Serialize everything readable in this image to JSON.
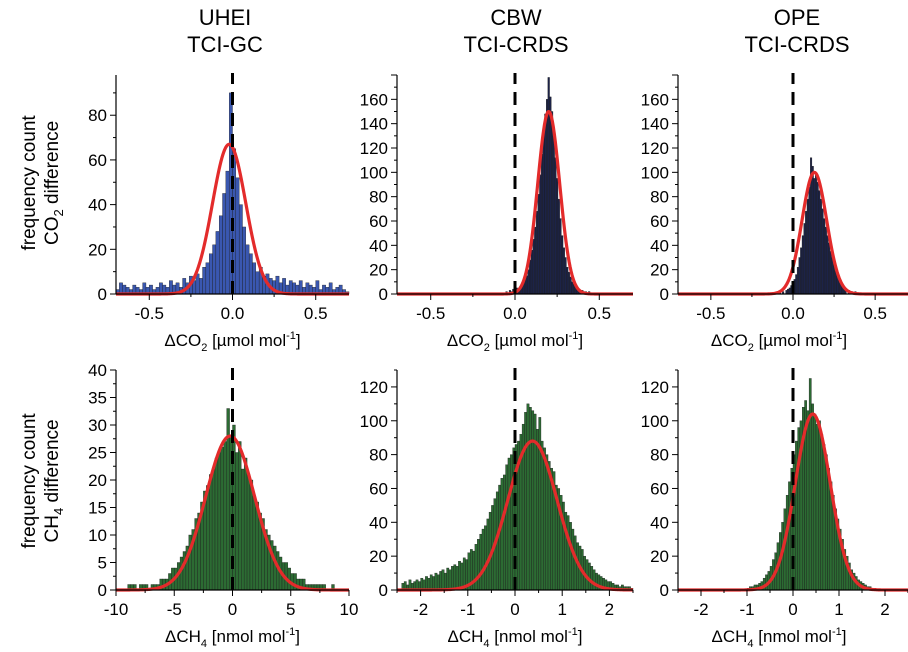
{
  "columns": [
    {
      "line1": "UHEI",
      "line2": "TCI-GC"
    },
    {
      "line1": "CBW",
      "line2": "TCI-CRDS"
    },
    {
      "line1": "OPE",
      "line2": "TCI-CRDS"
    }
  ],
  "row_labels": {
    "co2": {
      "line1": "frequency count",
      "line2_pre": "CO",
      "line2_sub": "2",
      "line2_post": " difference"
    },
    "ch4": {
      "line1": "frequency count",
      "line2_pre": "CH",
      "line2_sub": "4",
      "line2_post": " difference"
    }
  },
  "colors": {
    "co2_uhei": "#3a57b0",
    "co2_crds": "#1c2348",
    "ch4": "#2c6b33",
    "fit": "#e32b2b",
    "zero_line": "#000000"
  },
  "chart_data": [
    {
      "type": "bar",
      "panel": "co2-uhei",
      "xlabel": {
        "pre": "ΔCO",
        "sub": "2",
        "mid": " [µmol mol",
        "sup": "-1",
        "post": "]"
      },
      "xlim": [
        -0.7,
        0.7
      ],
      "xticks": [
        -0.5,
        0.0,
        0.5
      ],
      "xtick_labels": [
        "-0.5",
        "0.0",
        "0.5"
      ],
      "ylim": [
        0,
        98
      ],
      "yticks": [
        0,
        20,
        40,
        60,
        80
      ],
      "ytick_labels": [
        "0",
        "20",
        "40",
        "60",
        "80"
      ],
      "bin_width": 0.02,
      "bins_x": [
        -0.69,
        -0.67,
        -0.65,
        -0.63,
        -0.61,
        -0.59,
        -0.57,
        -0.55,
        -0.53,
        -0.51,
        -0.49,
        -0.47,
        -0.45,
        -0.43,
        -0.41,
        -0.39,
        -0.37,
        -0.35,
        -0.33,
        -0.31,
        -0.29,
        -0.27,
        -0.25,
        -0.23,
        -0.21,
        -0.19,
        -0.17,
        -0.15,
        -0.13,
        -0.11,
        -0.09,
        -0.07,
        -0.05,
        -0.03,
        -0.01,
        0.01,
        0.03,
        0.05,
        0.07,
        0.09,
        0.11,
        0.13,
        0.15,
        0.17,
        0.19,
        0.21,
        0.23,
        0.25,
        0.27,
        0.29,
        0.31,
        0.33,
        0.35,
        0.37,
        0.39,
        0.41,
        0.43,
        0.45,
        0.47,
        0.49,
        0.51,
        0.53,
        0.55,
        0.57,
        0.59,
        0.61,
        0.63,
        0.65,
        0.67,
        0.69
      ],
      "counts": [
        2,
        5,
        4,
        3,
        2,
        4,
        3,
        2,
        5,
        3,
        4,
        2,
        3,
        5,
        4,
        3,
        6,
        4,
        5,
        3,
        7,
        5,
        8,
        6,
        9,
        7,
        12,
        14,
        18,
        22,
        28,
        35,
        45,
        55,
        90,
        65,
        52,
        40,
        30,
        22,
        18,
        14,
        10,
        12,
        8,
        9,
        7,
        6,
        8,
        5,
        7,
        4,
        6,
        5,
        4,
        6,
        3,
        5,
        4,
        3,
        6,
        2,
        4,
        3,
        5,
        2,
        3,
        4,
        2,
        1
      ],
      "fit": {
        "type": "gaussian",
        "amplitude": 67,
        "center": -0.02,
        "sigma": 0.1
      },
      "zero_line": 0.0
    },
    {
      "type": "bar",
      "panel": "co2-cbw",
      "xlabel": {
        "pre": "ΔCO",
        "sub": "2",
        "mid": " [µmol mol",
        "sup": "-1",
        "post": "]"
      },
      "xlim": [
        -0.7,
        0.7
      ],
      "xticks": [
        -0.5,
        0.0,
        0.5
      ],
      "xtick_labels": [
        "-0.5",
        "0.0",
        "0.5"
      ],
      "ylim": [
        0,
        180
      ],
      "yticks": [
        0,
        20,
        40,
        60,
        80,
        100,
        120,
        140,
        160
      ],
      "ytick_labels": [
        "0",
        "20",
        "40",
        "60",
        "80",
        "100",
        "120",
        "140",
        "160"
      ],
      "bin_width": 0.01,
      "bins_x": [
        -0.05,
        -0.04,
        -0.03,
        -0.02,
        -0.01,
        0.0,
        0.01,
        0.02,
        0.03,
        0.04,
        0.05,
        0.06,
        0.07,
        0.08,
        0.09,
        0.1,
        0.11,
        0.12,
        0.13,
        0.14,
        0.15,
        0.16,
        0.17,
        0.18,
        0.19,
        0.2,
        0.21,
        0.22,
        0.23,
        0.24,
        0.25,
        0.26,
        0.27,
        0.28,
        0.29,
        0.3,
        0.31,
        0.32,
        0.33,
        0.34,
        0.35,
        0.36,
        0.37,
        0.38,
        0.39,
        0.4,
        0.41,
        0.42,
        0.43,
        0.44,
        0.45,
        0.47,
        0.5,
        0.53,
        0.56
      ],
      "counts": [
        2,
        1,
        3,
        2,
        4,
        3,
        5,
        4,
        6,
        8,
        10,
        12,
        15,
        20,
        28,
        36,
        45,
        55,
        68,
        82,
        98,
        115,
        132,
        148,
        160,
        178,
        162,
        150,
        130,
        112,
        95,
        78,
        62,
        48,
        38,
        30,
        22,
        18,
        14,
        10,
        8,
        6,
        5,
        4,
        3,
        3,
        2,
        2,
        1,
        2,
        1,
        1,
        1,
        1,
        1
      ],
      "fit": {
        "type": "gaussian",
        "amplitude": 150,
        "center": 0.2,
        "sigma": 0.065
      },
      "zero_line": 0.0
    },
    {
      "type": "bar",
      "panel": "co2-ope",
      "xlabel": {
        "pre": "ΔCO",
        "sub": "2",
        "mid": " [µmol mol",
        "sup": "-1",
        "post": "]"
      },
      "xlim": [
        -0.7,
        0.7
      ],
      "xticks": [
        -0.5,
        0.0,
        0.5
      ],
      "xtick_labels": [
        "-0.5",
        "0.0",
        "0.5"
      ],
      "ylim": [
        0,
        180
      ],
      "yticks": [
        0,
        20,
        40,
        60,
        80,
        100,
        120,
        140,
        160
      ],
      "ytick_labels": [
        "0",
        "20",
        "40",
        "60",
        "80",
        "100",
        "120",
        "140",
        "160"
      ],
      "bin_width": 0.01,
      "bins_x": [
        -0.1,
        -0.08,
        -0.06,
        -0.04,
        -0.03,
        -0.02,
        -0.01,
        0.0,
        0.01,
        0.02,
        0.03,
        0.04,
        0.05,
        0.06,
        0.07,
        0.08,
        0.09,
        0.1,
        0.11,
        0.12,
        0.13,
        0.14,
        0.15,
        0.16,
        0.17,
        0.18,
        0.19,
        0.2,
        0.21,
        0.22,
        0.23,
        0.24,
        0.25,
        0.26,
        0.27,
        0.28,
        0.29,
        0.3,
        0.31,
        0.32,
        0.34,
        0.36,
        0.38,
        0.4
      ],
      "counts": [
        1,
        2,
        2,
        3,
        4,
        5,
        7,
        9,
        12,
        16,
        22,
        30,
        38,
        48,
        58,
        68,
        78,
        88,
        112,
        105,
        95,
        98,
        92,
        85,
        78,
        70,
        62,
        55,
        48,
        42,
        35,
        30,
        24,
        19,
        15,
        12,
        9,
        7,
        5,
        4,
        3,
        2,
        2,
        1
      ],
      "fit": {
        "type": "gaussian",
        "amplitude": 100,
        "center": 0.13,
        "sigma": 0.075
      },
      "zero_line": 0.0
    },
    {
      "type": "bar",
      "panel": "ch4-uhei",
      "xlabel": {
        "pre": "ΔCH",
        "sub": "4",
        "mid": " [nmol mol",
        "sup": "-1",
        "post": "]"
      },
      "xlim": [
        -10,
        10
      ],
      "xticks": [
        -10,
        -5,
        0,
        5,
        10
      ],
      "xtick_labels": [
        "-10",
        "-5",
        "0",
        "5",
        "10"
      ],
      "ylim": [
        0,
        40
      ],
      "yticks": [
        0,
        5,
        10,
        15,
        20,
        25,
        30,
        35,
        40
      ],
      "ytick_labels": [
        "0",
        "5",
        "10",
        "15",
        "20",
        "25",
        "30",
        "35",
        "40"
      ],
      "bin_width": 0.25,
      "bins_x": [
        -8.875,
        -8.625,
        -8.375,
        -8.125,
        -7.875,
        -7.625,
        -7.375,
        -7.125,
        -6.875,
        -6.625,
        -6.375,
        -6.125,
        -5.875,
        -5.625,
        -5.375,
        -5.125,
        -4.875,
        -4.625,
        -4.375,
        -4.125,
        -3.875,
        -3.625,
        -3.375,
        -3.125,
        -2.875,
        -2.625,
        -2.375,
        -2.125,
        -1.875,
        -1.625,
        -1.375,
        -1.125,
        -0.875,
        -0.625,
        -0.375,
        -0.125,
        0.125,
        0.375,
        0.625,
        0.875,
        1.125,
        1.375,
        1.625,
        1.875,
        2.125,
        2.375,
        2.625,
        2.875,
        3.125,
        3.375,
        3.625,
        3.875,
        4.125,
        4.375,
        4.625,
        4.875,
        5.125,
        5.375,
        5.625,
        5.875,
        6.125,
        6.375,
        6.625,
        6.875,
        7.125,
        7.375,
        7.625,
        7.875,
        8.125,
        8.375,
        8.625,
        8.875
      ],
      "counts": [
        1,
        1,
        1,
        0,
        1,
        1,
        1,
        0,
        1,
        1,
        1,
        2,
        2,
        2,
        3,
        4,
        4,
        5,
        6,
        7,
        8,
        10,
        11,
        13,
        14,
        16,
        18,
        19,
        21,
        22,
        24,
        25,
        26,
        27,
        33,
        28,
        30,
        25,
        27,
        22,
        24,
        21,
        20,
        17,
        16,
        14,
        13,
        11,
        10,
        9,
        8,
        7,
        6,
        5,
        5,
        4,
        3,
        3,
        2,
        2,
        2,
        1,
        1,
        1,
        1,
        1,
        1,
        1,
        0,
        0,
        1,
        0
      ],
      "fit": {
        "type": "gaussian",
        "amplitude": 28,
        "center": -0.2,
        "sigma": 2.1
      },
      "zero_line": 0.0
    },
    {
      "type": "bar",
      "panel": "ch4-cbw",
      "xlabel": {
        "pre": "ΔCH",
        "sub": "4",
        "mid": " [nmol mol",
        "sup": "-1",
        "post": "]"
      },
      "xlim": [
        -2.5,
        2.5
      ],
      "xticks": [
        -2,
        -1,
        0,
        1,
        2
      ],
      "xtick_labels": [
        "-2",
        "-1",
        "0",
        "1",
        "2"
      ],
      "ylim": [
        0,
        130
      ],
      "yticks": [
        0,
        20,
        40,
        60,
        80,
        100,
        120
      ],
      "ytick_labels": [
        "0",
        "20",
        "40",
        "60",
        "80",
        "100",
        "120"
      ],
      "bin_width": 0.05,
      "bins_x": [
        -2.375,
        -2.325,
        -2.275,
        -2.225,
        -2.175,
        -2.125,
        -2.075,
        -2.025,
        -1.975,
        -1.925,
        -1.875,
        -1.825,
        -1.775,
        -1.725,
        -1.675,
        -1.625,
        -1.575,
        -1.525,
        -1.475,
        -1.425,
        -1.375,
        -1.325,
        -1.275,
        -1.225,
        -1.175,
        -1.125,
        -1.075,
        -1.025,
        -0.975,
        -0.925,
        -0.875,
        -0.825,
        -0.775,
        -0.725,
        -0.675,
        -0.625,
        -0.575,
        -0.525,
        -0.475,
        -0.425,
        -0.375,
        -0.325,
        -0.275,
        -0.225,
        -0.175,
        -0.125,
        -0.075,
        -0.025,
        0.025,
        0.075,
        0.125,
        0.175,
        0.225,
        0.275,
        0.325,
        0.375,
        0.425,
        0.475,
        0.525,
        0.575,
        0.625,
        0.675,
        0.725,
        0.775,
        0.825,
        0.875,
        0.925,
        0.975,
        1.025,
        1.075,
        1.125,
        1.175,
        1.225,
        1.275,
        1.325,
        1.375,
        1.425,
        1.475,
        1.525,
        1.575,
        1.625,
        1.675,
        1.725,
        1.775,
        1.825,
        1.875,
        1.925,
        1.975,
        2.025,
        2.075,
        2.125,
        2.175,
        2.225,
        2.275,
        2.325,
        2.375,
        2.425,
        2.475
      ],
      "counts": [
        4,
        5,
        3,
        6,
        4,
        5,
        6,
        5,
        7,
        6,
        8,
        7,
        9,
        8,
        10,
        9,
        11,
        12,
        10,
        13,
        12,
        14,
        15,
        14,
        17,
        16,
        19,
        18,
        22,
        24,
        23,
        27,
        30,
        33,
        36,
        38,
        42,
        46,
        50,
        54,
        58,
        62,
        66,
        68,
        74,
        78,
        80,
        84,
        86,
        88,
        92,
        98,
        105,
        110,
        108,
        106,
        104,
        95,
        102,
        88,
        84,
        80,
        76,
        72,
        70,
        62,
        60,
        56,
        52,
        46,
        44,
        40,
        36,
        32,
        28,
        26,
        24,
        20,
        18,
        16,
        14,
        12,
        10,
        9,
        8,
        7,
        6,
        5,
        5,
        4,
        3,
        3,
        2,
        3,
        2,
        2,
        2,
        1
      ],
      "fit": {
        "type": "gaussian",
        "amplitude": 88,
        "center": 0.37,
        "sigma": 0.52
      },
      "zero_line": 0.0
    },
    {
      "type": "bar",
      "panel": "ch4-ope",
      "xlabel": {
        "pre": "ΔCH",
        "sub": "4",
        "mid": " [nmol mol",
        "sup": "-1",
        "post": "]"
      },
      "xlim": [
        -2.5,
        2.5
      ],
      "xticks": [
        -2,
        -1,
        0,
        1,
        2
      ],
      "xtick_labels": [
        "-2",
        "-1",
        "0",
        "1",
        "2"
      ],
      "ylim": [
        0,
        130
      ],
      "yticks": [
        0,
        20,
        40,
        60,
        80,
        100,
        120
      ],
      "ytick_labels": [
        "0",
        "20",
        "40",
        "60",
        "80",
        "100",
        "120"
      ],
      "bin_width": 0.05,
      "bins_x": [
        -0.975,
        -0.925,
        -0.875,
        -0.825,
        -0.775,
        -0.725,
        -0.675,
        -0.625,
        -0.575,
        -0.525,
        -0.475,
        -0.425,
        -0.375,
        -0.325,
        -0.275,
        -0.225,
        -0.175,
        -0.125,
        -0.075,
        -0.025,
        0.025,
        0.075,
        0.125,
        0.175,
        0.225,
        0.275,
        0.325,
        0.375,
        0.425,
        0.475,
        0.525,
        0.575,
        0.625,
        0.675,
        0.725,
        0.775,
        0.825,
        0.875,
        0.925,
        0.975,
        1.025,
        1.075,
        1.125,
        1.175,
        1.225,
        1.275,
        1.325,
        1.375,
        1.425,
        1.475,
        1.525,
        1.575,
        1.625,
        1.675,
        1.725,
        1.775
      ],
      "counts": [
        1,
        2,
        2,
        3,
        3,
        4,
        5,
        7,
        9,
        11,
        14,
        18,
        22,
        28,
        34,
        40,
        48,
        56,
        64,
        72,
        80,
        88,
        96,
        100,
        108,
        112,
        106,
        125,
        110,
        104,
        98,
        100,
        92,
        86,
        80,
        72,
        64,
        56,
        48,
        42,
        36,
        30,
        24,
        20,
        16,
        12,
        10,
        8,
        6,
        5,
        4,
        3,
        2,
        2,
        1,
        1
      ],
      "fit": {
        "type": "gaussian",
        "amplitude": 104,
        "center": 0.43,
        "sigma": 0.38
      },
      "zero_line": 0.0
    }
  ]
}
